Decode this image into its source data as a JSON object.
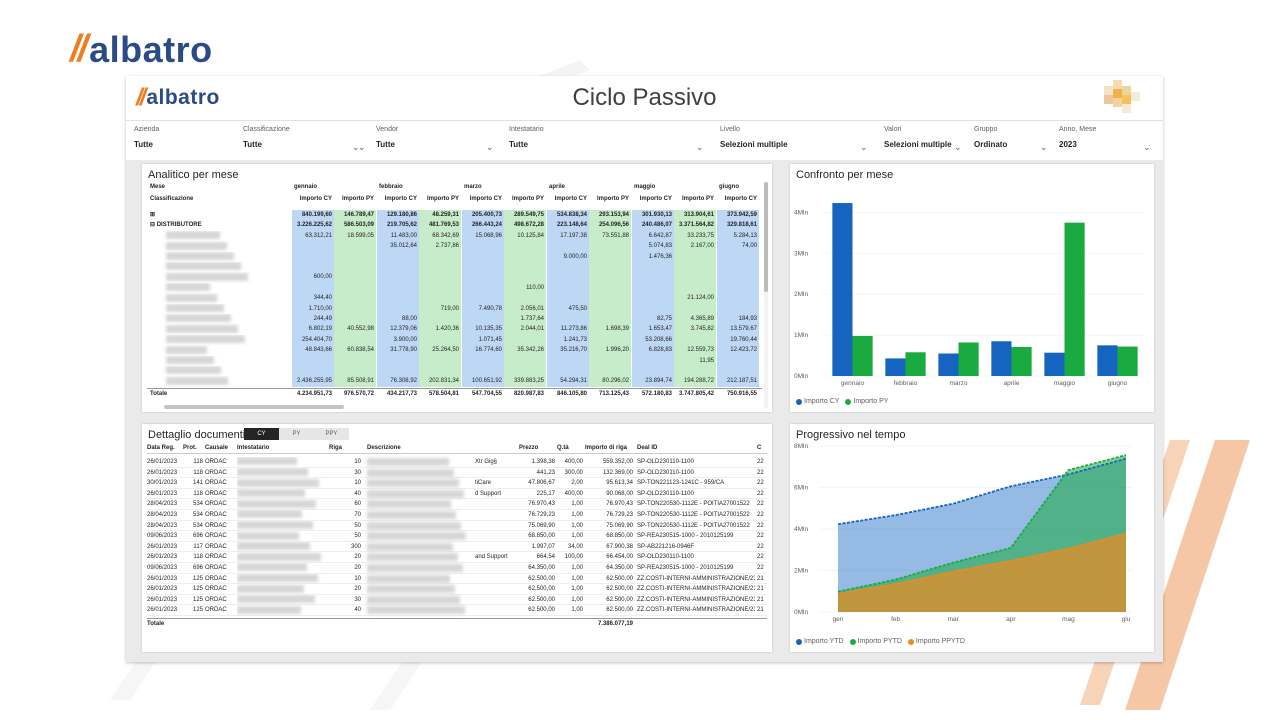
{
  "brand": {
    "logo_text": "albatro"
  },
  "report": {
    "title": "Ciclo Passivo"
  },
  "filters": [
    {
      "label": "Azienda",
      "value": "Tutte"
    },
    {
      "label": "Classificazione",
      "value": "Tutte"
    },
    {
      "label": "Vendor",
      "value": "Tutte"
    },
    {
      "label": "Intestatario",
      "value": "Tutte"
    },
    {
      "label": "Livello",
      "value": "Selezioni multiple"
    },
    {
      "label": "Valori",
      "value": "Selezioni multiple"
    },
    {
      "label": "Gruppo",
      "value": "Ordinato"
    },
    {
      "label": "Anno, Mese",
      "value": "2023"
    }
  ],
  "matrix": {
    "title": "Analitico per mese",
    "mese_label": "Mese",
    "class_label": "Classificazione",
    "months": [
      "gennaio",
      "febbraio",
      "marzo",
      "aprile",
      "maggio",
      "giugno"
    ],
    "cy_label": "Importo CY",
    "py_label": "Importo PY",
    "rows": [
      {
        "label": "⊞",
        "bold": true,
        "values": [
          "840.199,60",
          "146.789,47",
          "129.180,86",
          "48.259,31",
          "205.400,73",
          "289.549,75",
          "534.838,34",
          "293.153,94",
          "301.930,13",
          "313.904,61",
          "373.942,59"
        ]
      },
      {
        "label": "⊟ DISTRIBUTORE",
        "bold": true,
        "values": [
          "3.226.225,62",
          "586.503,09",
          "219.705,62",
          "481.769,53",
          "266.443,24",
          "498.672,28",
          "223.148,64",
          "254.096,56",
          "240.486,07",
          "3.371.564,82",
          "329.818,61"
        ]
      },
      {
        "label": "",
        "values": [
          "63.312,21",
          "18.599,05",
          "11.483,00",
          "68.342,69",
          "15.068,96",
          "10.125,84",
          "17.197,38",
          "73.551,88",
          "6.642,87",
          "33.233,75",
          "5.284,13"
        ]
      },
      {
        "label": "",
        "values": [
          "",
          "",
          "35.012,64",
          "2.737,86",
          "",
          "",
          "",
          "",
          "5.074,83",
          "2.167,00",
          "74,00"
        ]
      },
      {
        "label": "",
        "values": [
          "",
          "",
          "",
          "",
          "",
          "",
          "9.000,00",
          "",
          "1.476,36",
          "",
          ""
        ]
      },
      {
        "label": "",
        "values": [
          "",
          "",
          "",
          "",
          "",
          "",
          "",
          "",
          "",
          "",
          ""
        ]
      },
      {
        "label": "",
        "values": [
          "600,00",
          "",
          "",
          "",
          "",
          "",
          "",
          "",
          "",
          "",
          ""
        ]
      },
      {
        "label": "",
        "values": [
          "",
          "",
          "",
          "",
          "",
          "110,00",
          "",
          "",
          "",
          "",
          ""
        ]
      },
      {
        "label": "",
        "values": [
          "344,40",
          "",
          "",
          "",
          "",
          "",
          "",
          "",
          "",
          "21.124,00",
          ""
        ]
      },
      {
        "label": "",
        "values": [
          "1.710,00",
          "",
          "",
          "719,00",
          "7.490,78",
          "2.056,01",
          "475,50",
          "",
          "",
          "",
          ""
        ]
      },
      {
        "label": "",
        "values": [
          "244,49",
          "",
          "88,00",
          "",
          "",
          "1.737,64",
          "",
          "",
          "82,75",
          "4.365,89",
          "184,93"
        ]
      },
      {
        "label": "",
        "values": [
          "6.802,19",
          "40.552,98",
          "12.379,06",
          "1.420,36",
          "10.135,35",
          "2.044,01",
          "11.273,86",
          "1.698,39",
          "1.653,47",
          "3.745,82",
          "13.579,67"
        ]
      },
      {
        "label": "",
        "values": [
          "254.404,70",
          "",
          "3.900,00",
          "",
          "1.071,45",
          "",
          "1.241,73",
          "",
          "53.208,66",
          "",
          "19.760,44"
        ]
      },
      {
        "label": "",
        "values": [
          "48.843,66",
          "60.838,54",
          "31.778,90",
          "25.264,50",
          "16.774,60",
          "35.342,26",
          "35.216,70",
          "1.996,20",
          "6.828,83",
          "12.559,73",
          "12.423,72"
        ]
      },
      {
        "label": "",
        "values": [
          "",
          "",
          "",
          "",
          "",
          "",
          "",
          "",
          "",
          "11,95",
          ""
        ]
      },
      {
        "label": "",
        "values": [
          "",
          "",
          "",
          "",
          "",
          "",
          "",
          "",
          "",
          "",
          ""
        ]
      },
      {
        "label": "",
        "values": [
          "2.436.255,95",
          "85.508,91",
          "76.308,92",
          "202.831,34",
          "100.651,92",
          "339.883,25",
          "54.294,31",
          "80.296,02",
          "23.894,74",
          "194.288,72",
          "212.187,51"
        ]
      }
    ],
    "total_label": "Totale",
    "totals": [
      "4.234.951,73",
      "976.570,72",
      "434.217,73",
      "578.504,81",
      "547.704,55",
      "820.987,83",
      "846.105,80",
      "713.125,43",
      "572.180,83",
      "3.747.805,42",
      "750.916,55"
    ]
  },
  "bar_chart": {
    "title": "Confronto per mese",
    "legend": [
      "Importo CY",
      "Importo PY"
    ],
    "colors": {
      "cy": "#1565c0",
      "py": "#1aab40"
    }
  },
  "docs": {
    "title": "Dettaglio documenti",
    "tabs": [
      "CY",
      "PY",
      "PPY"
    ],
    "columns": [
      "Data Reg.",
      "Prot.",
      "Causale",
      "Intestatario",
      "Riga",
      "Descrizione",
      "Prezzo",
      "Q.tà",
      "Importo di riga",
      "Deal ID",
      "C"
    ],
    "rows": [
      [
        "26/01/2023",
        "118",
        "ORDAC",
        "10",
        "Xtr Gig§",
        "1.398,38",
        "400,00",
        "559.352,00",
        "SP-OLD230110-1100",
        "22"
      ],
      [
        "26/01/2023",
        "118",
        "ORDAC",
        "30",
        "",
        "441,23",
        "300,00",
        "132.369,00",
        "SP-OLD230110-1100",
        "22"
      ],
      [
        "30/01/2023",
        "141",
        "ORDAC",
        "10",
        "tiCare",
        "47.806,67",
        "2,00",
        "95.613,34",
        "SP-TON221123-1241C - 959/CA",
        "22"
      ],
      [
        "26/01/2023",
        "118",
        "ORDAC",
        "40",
        "d Support",
        "225,17",
        "400,00",
        "90.068,00",
        "SP-OLD230110-1100",
        "22"
      ],
      [
        "28/04/2023",
        "534",
        "ORDAC",
        "60",
        "",
        "76.970,43",
        "1,00",
        "76.970,43",
        "SP-TON220530-1112E - POITIA27001522",
        "22"
      ],
      [
        "28/04/2023",
        "534",
        "ORDAC",
        "70",
        "",
        "76.729,23",
        "1,00",
        "76.729,23",
        "SP-TON220530-1112E - POITIA27001522",
        "22"
      ],
      [
        "28/04/2023",
        "534",
        "ORDAC",
        "50",
        "",
        "75.069,90",
        "1,00",
        "75.069,90",
        "SP-TON220530-1112E - POITIA27001522",
        "22"
      ],
      [
        "09/06/2023",
        "696",
        "ORDAC",
        "50",
        "",
        "68.850,00",
        "1,00",
        "68.850,00",
        "SP-REA230515-1000 - 2010125199",
        "22"
      ],
      [
        "26/01/2023",
        "117",
        "ORDAC",
        "300",
        "",
        "1.997,07",
        "34,00",
        "67.900,38",
        "SP-AB221216-0946F",
        "22"
      ],
      [
        "26/01/2023",
        "118",
        "ORDAC",
        "20",
        "and Support",
        "664,54",
        "100,00",
        "66.454,00",
        "SP-OLD230110-1100",
        "22"
      ],
      [
        "09/06/2023",
        "696",
        "ORDAC",
        "20",
        "",
        "64.350,00",
        "1,00",
        "64.350,00",
        "SP-REA230515-1000 - 2010125199",
        "22"
      ],
      [
        "26/01/2023",
        "125",
        "ORDAC",
        "10",
        "",
        "62.500,00",
        "1,00",
        "62.500,00",
        "ZZ.COSTI-INTERNI-AMMINISTRAZIONE/23",
        "21"
      ],
      [
        "26/01/2023",
        "125",
        "ORDAC",
        "20",
        "",
        "62.500,00",
        "1,00",
        "62.500,00",
        "ZZ.COSTI-INTERNI-AMMINISTRAZIONE/23",
        "21"
      ],
      [
        "26/01/2023",
        "125",
        "ORDAC",
        "30",
        "",
        "62.500,00",
        "1,00",
        "62.500,00",
        "ZZ.COSTI-INTERNI-AMMINISTRAZIONE/23",
        "21"
      ],
      [
        "26/01/2023",
        "125",
        "ORDAC",
        "40",
        "",
        "62.500,00",
        "1,00",
        "62.500,00",
        "ZZ.COSTI-INTERNI-AMMINISTRAZIONE/23",
        "21"
      ]
    ],
    "total_label": "Totale",
    "total_value": "7.386.077,19"
  },
  "area_chart": {
    "title": "Progressivo nel tempo",
    "legend": [
      "Importo YTD",
      "Importo PYTD",
      "Importo PPYTD"
    ],
    "colors": {
      "ytd": "#1565c0",
      "pytd": "#1aab40",
      "ppytd": "#ee8a1e"
    }
  },
  "chart_data": [
    {
      "type": "bar",
      "title": "Confronto per mese",
      "categories": [
        "gennaio",
        "febbraio",
        "marzo",
        "aprile",
        "maggio",
        "giugno"
      ],
      "series": [
        {
          "name": "Importo CY",
          "values": [
            4.23,
            0.43,
            0.55,
            0.85,
            0.57,
            0.75
          ]
        },
        {
          "name": "Importo PY",
          "values": [
            0.98,
            0.58,
            0.82,
            0.71,
            3.75,
            0.72
          ]
        }
      ],
      "yticks": [
        "0Mln",
        "1Mln",
        "2Mln",
        "3Mln",
        "4Mln"
      ],
      "ylim": [
        0,
        4.5
      ],
      "legend_position": "bottom-left"
    },
    {
      "type": "area",
      "title": "Progressivo nel tempo",
      "categories": [
        "gen",
        "feb",
        "mar",
        "apr",
        "mag",
        "giu"
      ],
      "series": [
        {
          "name": "Importo YTD",
          "values": [
            4.23,
            4.67,
            5.22,
            6.06,
            6.63,
            7.39
          ]
        },
        {
          "name": "Importo PYTD",
          "values": [
            0.98,
            1.56,
            2.38,
            3.09,
            6.84,
            7.56
          ]
        },
        {
          "name": "Importo PPYTD",
          "values": [
            0.88,
            1.35,
            1.95,
            2.47,
            3.05,
            3.78
          ]
        }
      ],
      "yticks": [
        "0Mln",
        "2Mln",
        "4Mln",
        "6Mln",
        "8Mln"
      ],
      "ylim": [
        0,
        8
      ],
      "legend_position": "bottom-left"
    }
  ]
}
